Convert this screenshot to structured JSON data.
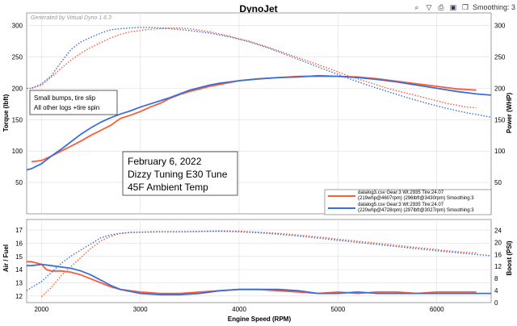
{
  "window": {
    "title": "DynoJet",
    "toolbar": {
      "smoothing_label": "Smoothing: 3",
      "icons": [
        "search-icon",
        "filter-icon",
        "print-icon",
        "save-icon",
        "copy-icon"
      ]
    }
  },
  "chart_data": [
    {
      "type": "line",
      "title": "",
      "watermark": "Generated by Virtual Dyno 1.6.3",
      "xlabel": "",
      "ylabel": "Torque (lbft)",
      "ylabel_right": "Power (WHP)",
      "xlim": [
        1850,
        6550
      ],
      "ylim": [
        0,
        320
      ],
      "yticks": [
        50,
        100,
        150,
        200,
        250,
        300
      ],
      "xticks": [
        2000,
        3000,
        4000,
        5000,
        6000
      ],
      "grid": true,
      "legend": "bottom-right",
      "annotations": [
        {
          "lines": [
            "Small bumps, tire slip",
            "All other logs +tire spin"
          ]
        },
        {
          "lines": [
            "February 6, 2022",
            "Dizzy Tuning E30 Tune",
            "45F Ambient Temp"
          ]
        }
      ],
      "series": [
        {
          "name": "datalog3.csv Gear:3 Wt:2935 Tire:24.07",
          "name_line2": "(219whp@4607rpm) (296lbft@3430rpm) Smoothing:3",
          "color": "#ff5a36",
          "power": {
            "x": [
              1900,
              2000,
              2100,
              2200,
              2300,
              2400,
              2500,
              2600,
              2700,
              2800,
              2900,
              3000,
              3100,
              3200,
              3300,
              3400,
              3500,
              3600,
              3700,
              3800,
              3900,
              4000,
              4200,
              4400,
              4600,
              4800,
              5000,
              5200,
              5400,
              5600,
              5800,
              6000,
              6200,
              6400
            ],
            "y": [
              83,
              85,
              92,
              100,
              108,
              116,
              125,
              133,
              141,
              152,
              157,
              163,
              170,
              176,
              184,
              190,
              195,
              199,
              203,
              206,
              209,
              212,
              215,
              217,
              219,
              219,
              219,
              218,
              215,
              211,
              207,
              203,
              199,
              197
            ]
          },
          "torque": {
            "x": [
              1900,
              2000,
              2100,
              2200,
              2300,
              2400,
              2500,
              2600,
              2700,
              2800,
              2900,
              3000,
              3100,
              3200,
              3300,
              3400,
              3500,
              3700,
              3900,
              4100,
              4300,
              4500,
              4700,
              4900,
              5100,
              5300,
              5500,
              5700,
              5900,
              6100,
              6300,
              6400
            ],
            "y": [
              200,
              205,
              218,
              232,
              245,
              256,
              265,
              273,
              280,
              286,
              290,
              292,
              294,
              295,
              296,
              296,
              295,
              290,
              283,
              275,
              265,
              254,
              243,
              232,
              220,
              210,
              200,
              192,
              184,
              176,
              170,
              169
            ]
          }
        },
        {
          "name": "datalog5.csv Gear:3 Wt:2935 Tire:24.07",
          "name_line2": "(220whp@4728rpm) (297lbft@3027rpm) Smoothing:3",
          "color": "#3b6fd6",
          "power": {
            "x": [
              1850,
              1900,
              2000,
              2100,
              2200,
              2300,
              2400,
              2500,
              2600,
              2700,
              2800,
              2900,
              3000,
              3100,
              3200,
              3300,
              3400,
              3500,
              3600,
              3700,
              3800,
              3900,
              4000,
              4200,
              4400,
              4600,
              4800,
              5000,
              5200,
              5400,
              5600,
              5800,
              6000,
              6200,
              6400,
              6550
            ],
            "y": [
              70,
              72,
              80,
              92,
              103,
              115,
              127,
              137,
              146,
              153,
              159,
              164,
              170,
              175,
              180,
              185,
              191,
              197,
              201,
              205,
              208,
              210,
              212,
              215,
              217,
              218,
              220,
              219,
              217,
              214,
              210,
              205,
              200,
              195,
              191,
              189
            ]
          },
          "torque": {
            "x": [
              1850,
              1900,
              2000,
              2100,
              2200,
              2300,
              2400,
              2500,
              2600,
              2700,
              2800,
              2900,
              3000,
              3100,
              3300,
              3500,
              3700,
              3900,
              4100,
              4300,
              4500,
              4700,
              4900,
              5100,
              5300,
              5500,
              5700,
              5900,
              6100,
              6300,
              6550
            ],
            "y": [
              200,
              200,
              207,
              220,
              242,
              262,
              274,
              281,
              288,
              293,
              295,
              296,
              297,
              297,
              295,
              292,
              288,
              282,
              274,
              264,
              252,
              240,
              228,
              216,
              205,
              195,
              185,
              176,
              168,
              161,
              154
            ]
          }
        }
      ]
    },
    {
      "type": "line",
      "title": "",
      "xlabel": "Engine Speed (RPM)",
      "ylabel": "Air / Fuel",
      "ylabel_right": "Boost (PSI)",
      "xlim": [
        1850,
        6550
      ],
      "ylim": [
        11.5,
        17.8
      ],
      "ylim_right": [
        0,
        27.6
      ],
      "yticks": [
        12,
        13,
        14,
        15,
        16,
        17
      ],
      "yticks_right": [
        0,
        4,
        8,
        12,
        16,
        20,
        24
      ],
      "xticks": [
        2000,
        3000,
        4000,
        5000,
        6000
      ],
      "grid": true,
      "series": [
        {
          "name": "datalog3.csv",
          "color": "#ff5a36",
          "afr": {
            "x": [
              1850,
              1900,
              2000,
              2050,
              2100,
              2200,
              2300,
              2400,
              2500,
              2600,
              2700,
              2800,
              3000,
              3200,
              3400,
              3600,
              3800,
              4000,
              4200,
              4400,
              4600,
              4800,
              5000,
              5200,
              5400,
              5600,
              5800,
              6000,
              6200,
              6400
            ],
            "y": [
              14.6,
              14.6,
              14.4,
              14.0,
              13.9,
              13.9,
              13.8,
              13.6,
              13.3,
              13.0,
              12.7,
              12.5,
              12.3,
              12.2,
              12.2,
              12.3,
              12.4,
              12.5,
              12.5,
              12.4,
              12.3,
              12.2,
              12.3,
              12.2,
              12.3,
              12.3,
              12.2,
              12.3,
              12.3,
              12.3
            ]
          },
          "boost": {
            "x": [
              2000,
              2100,
              2200,
              2300,
              2400,
              2500,
              2600,
              2700,
              2800,
              2900,
              3000,
              3200,
              3400,
              3600,
              3800,
              4000,
              4200,
              4400,
              4600,
              4800,
              5000,
              5200,
              5400,
              5600,
              5800,
              6000,
              6200,
              6400
            ],
            "y": [
              2,
              5,
              9,
              12,
              15,
              18,
              20.5,
              22,
              23,
              23.3,
              23.4,
              23.5,
              23.5,
              23.6,
              23.8,
              23.7,
              23.4,
              23.0,
              22.4,
              21.8,
              21.1,
              20.4,
              19.7,
              19.0,
              18.3,
              17.6,
              16.9,
              16.5
            ]
          }
        },
        {
          "name": "datalog5.csv",
          "color": "#3b6fd6",
          "afr": {
            "x": [
              1850,
              1900,
              2000,
              2100,
              2200,
              2300,
              2400,
              2500,
              2600,
              2700,
              2800,
              3000,
              3200,
              3400,
              3600,
              3800,
              4000,
              4200,
              4400,
              4600,
              4800,
              5000,
              5200,
              5400,
              5600,
              5800,
              6000,
              6200,
              6400,
              6550
            ],
            "y": [
              14.3,
              14.3,
              14.4,
              14.3,
              14.2,
              14.1,
              13.9,
              13.6,
              13.2,
              12.8,
              12.5,
              12.2,
              12.1,
              12.1,
              12.2,
              12.4,
              12.5,
              12.5,
              12.5,
              12.4,
              12.2,
              12.2,
              12.3,
              12.2,
              12.2,
              12.2,
              12.2,
              12.2,
              12.2,
              12.2
            ]
          },
          "boost": {
            "x": [
              1850,
              1900,
              2000,
              2100,
              2200,
              2300,
              2400,
              2500,
              2600,
              2700,
              2800,
              2900,
              3000,
              3200,
              3400,
              3600,
              3800,
              4000,
              4200,
              4400,
              4600,
              4800,
              5000,
              5200,
              5400,
              5600,
              5800,
              6000,
              6200,
              6400,
              6550
            ],
            "y": [
              4,
              5,
              7,
              10,
              13,
              15.5,
              17.5,
              19.5,
              21.5,
              22.5,
              23,
              23.3,
              23.4,
              23.5,
              23.5,
              23.6,
              23.7,
              23.5,
              23.2,
              22.7,
              22.1,
              21.4,
              20.7,
              20.0,
              19.3,
              18.6,
              17.9,
              17.2,
              16.6,
              16.0,
              15.6
            ]
          }
        }
      ]
    }
  ]
}
